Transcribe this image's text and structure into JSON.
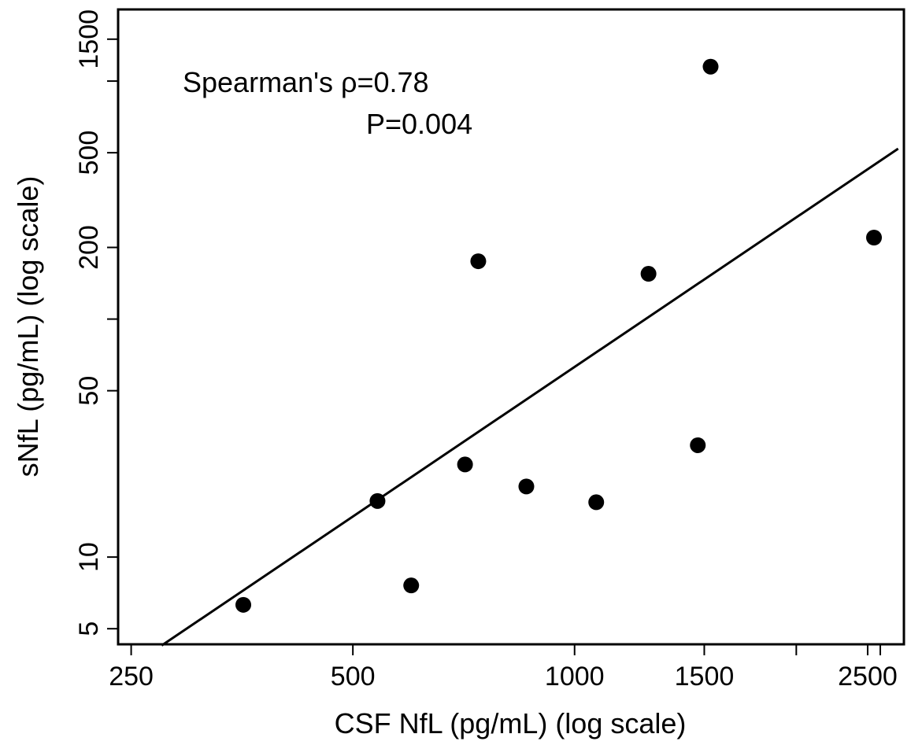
{
  "chart_data": {
    "type": "scatter",
    "xlabel": "CSF NfL (pg/mL) (log scale)",
    "ylabel": "sNfL (pg/mL) (log scale)",
    "x_scale": "log",
    "y_scale": "log",
    "xlim": [
      240,
      2800
    ],
    "ylim": [
      4.3,
      2000
    ],
    "x_ticks": [
      250,
      500,
      1000,
      1500,
      2500
    ],
    "x_minor_ticks": [
      2000
    ],
    "y_ticks": [
      5,
      10,
      50,
      200,
      500,
      1500
    ],
    "y_minor_ticks": [
      100,
      1000
    ],
    "points": [
      {
        "x": 355,
        "y": 6.3
      },
      {
        "x": 540,
        "y": 17.2
      },
      {
        "x": 600,
        "y": 7.6
      },
      {
        "x": 710,
        "y": 24.5
      },
      {
        "x": 740,
        "y": 175
      },
      {
        "x": 860,
        "y": 19.8
      },
      {
        "x": 1070,
        "y": 17.0
      },
      {
        "x": 1260,
        "y": 155
      },
      {
        "x": 1470,
        "y": 29.5
      },
      {
        "x": 1530,
        "y": 1150
      },
      {
        "x": 2550,
        "y": 220
      }
    ],
    "regression_line": {
      "x": [
        275,
        2750
      ],
      "y": [
        4.25,
        520
      ]
    },
    "annotations": [
      "Spearman's ρ=0.78",
      "P=0.004"
    ],
    "grid": false,
    "legend": "none",
    "colors": {
      "points": "#000000",
      "line": "#000000",
      "frame": "#000000"
    }
  }
}
